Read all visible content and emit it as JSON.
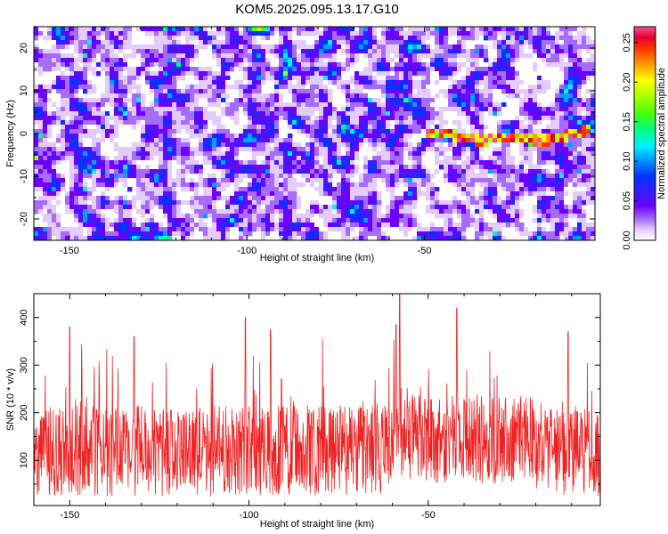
{
  "title": "KOM5.2025.095.13.17.G10",
  "chart_data": [
    {
      "type": "heatmap",
      "name": "spectrogram",
      "xlabel": "Height of straight line (km)",
      "ylabel": "Frequency (Hz)",
      "xlim": [
        -160,
        -2
      ],
      "ylim": [
        -25,
        25
      ],
      "xticks": [
        -150,
        -100,
        -50
      ],
      "yticks": [
        -20,
        -10,
        0,
        10,
        20
      ],
      "colorbar": {
        "label": "Normalized spectral amplitude",
        "range": [
          0,
          0.27
        ],
        "ticks": [
          0.0,
          0.05,
          0.1,
          0.15,
          0.2,
          0.25
        ],
        "tick_labels": [
          "0.00",
          "0.05",
          "0.10",
          "0.15",
          "0.20",
          "0.25"
        ],
        "colors": [
          "#ffffff",
          "#e5ccff",
          "#a66bff",
          "#6e00ff",
          "#3c1aff",
          "#0033ff",
          "#00a0ff",
          "#00f0ff",
          "#00ff80",
          "#4dff00",
          "#b3ff00",
          "#ffff00",
          "#ffa000",
          "#ff3300",
          "#e6002e",
          "#ff4d99"
        ]
      },
      "signal_track": {
        "x": [
          -50,
          -45,
          -40,
          -35,
          -30,
          -25,
          -20,
          -15,
          -10,
          -5,
          -3
        ],
        "y": [
          0.2,
          0.1,
          -0.8,
          -1.6,
          -1.2,
          -0.9,
          -1.5,
          -1.5,
          -0.4,
          0.4,
          1.0
        ]
      },
      "grid": false
    },
    {
      "type": "line",
      "name": "snr",
      "xlabel": "Height of straight line (km)",
      "ylabel": "SNR (10 * v/v)",
      "xlim": [
        -160,
        -2
      ],
      "ylim": [
        5,
        450
      ],
      "xticks": [
        -150,
        -100,
        -50
      ],
      "yticks": [
        100,
        200,
        300,
        400
      ],
      "line_color": "#ee2222",
      "baseline_mean": 120,
      "notable_peaks": [
        {
          "x": -150,
          "y": 380
        },
        {
          "x": -132,
          "y": 360
        },
        {
          "x": -101,
          "y": 400
        },
        {
          "x": -94,
          "y": 375
        },
        {
          "x": -59,
          "y": 385
        },
        {
          "x": -58,
          "y": 450
        },
        {
          "x": -42,
          "y": 420
        },
        {
          "x": -11,
          "y": 370
        }
      ],
      "grid": false
    }
  ]
}
